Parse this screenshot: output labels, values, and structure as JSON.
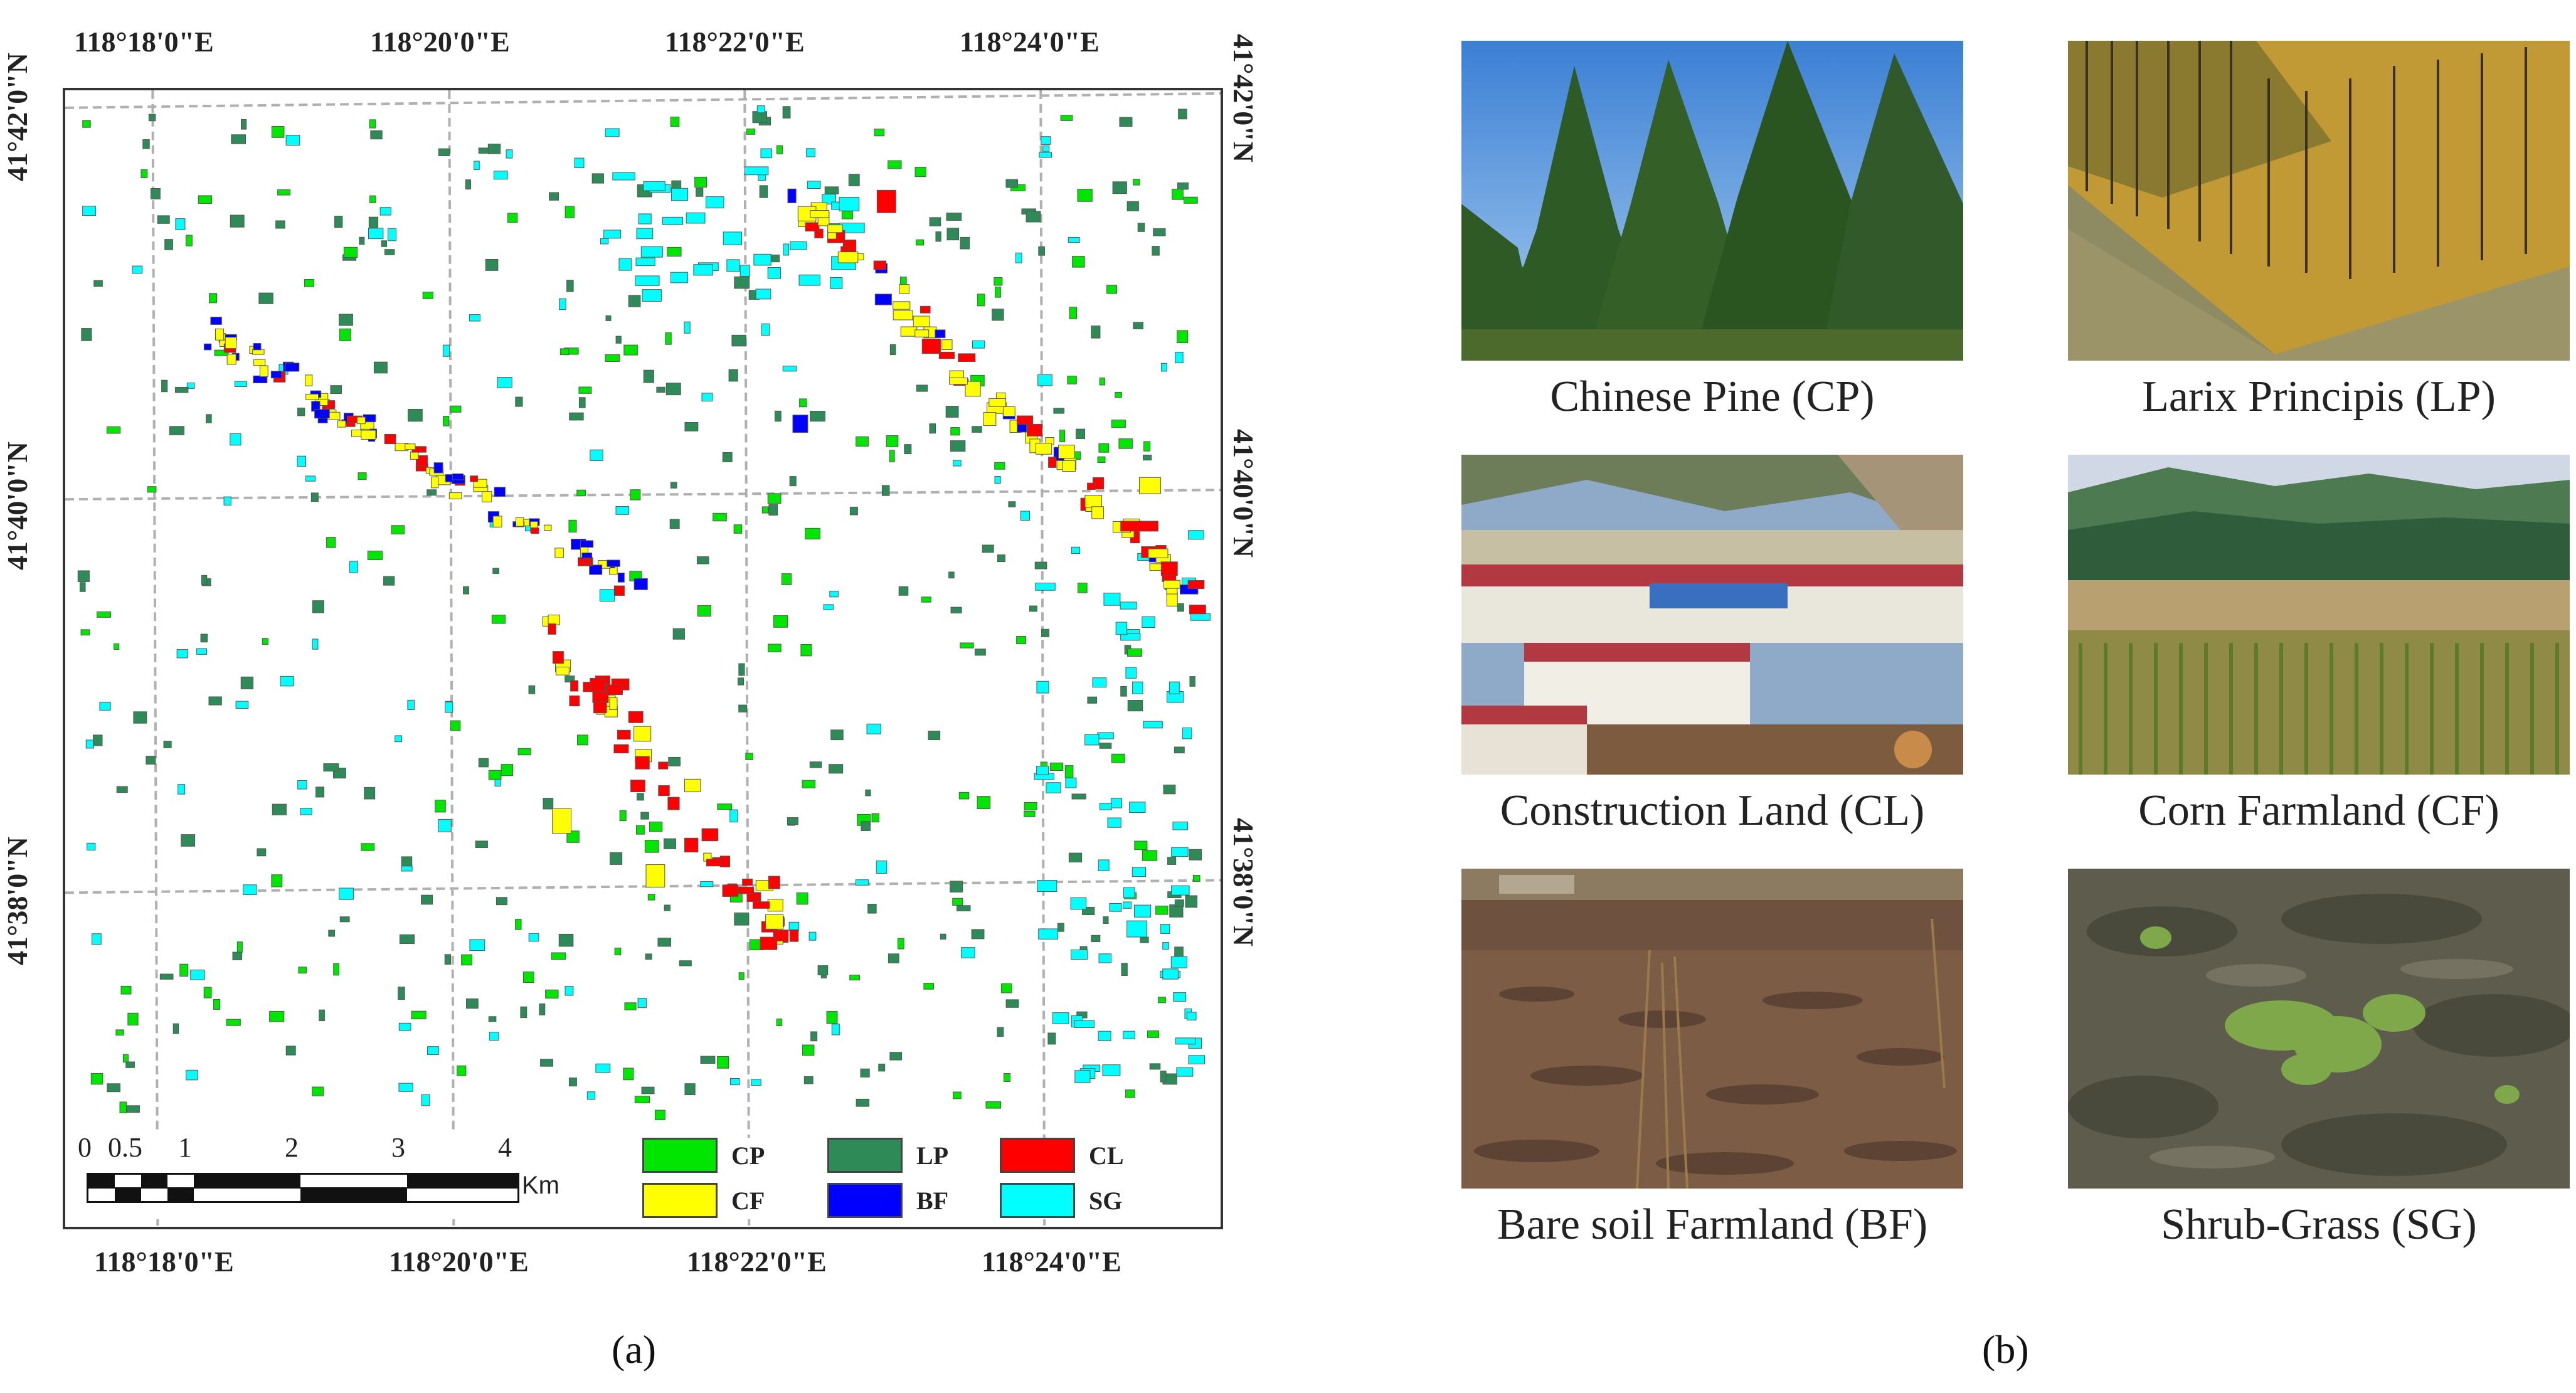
{
  "panel_a": {
    "label": "(a)",
    "top_coords": [
      "118°18'0\"E",
      "118°20'0\"E",
      "118°22'0\"E",
      "118°24'0\"E"
    ],
    "bottom_coords": [
      "118°18'0\"E",
      "118°20'0\"E",
      "118°22'0\"E",
      "118°24'0\"E"
    ],
    "left_coords": [
      "41°42'0\"N",
      "41°40'0\"N",
      "41°38'0\"N"
    ],
    "right_coords": [
      "41°42'0\"N",
      "41°40'0\"N",
      "41°38'0\"N"
    ],
    "scalebar": {
      "ticks": [
        "0",
        "0.5",
        "1",
        "2",
        "3",
        "4"
      ],
      "unit": "Km"
    },
    "legend": [
      {
        "code": "CP",
        "color": "#00e600"
      },
      {
        "code": "LP",
        "color": "#2e8b57"
      },
      {
        "code": "CL",
        "color": "#ff0000"
      },
      {
        "code": "CF",
        "color": "#ffff00"
      },
      {
        "code": "BF",
        "color": "#0000ff"
      },
      {
        "code": "SG",
        "color": "#00ffff"
      }
    ]
  },
  "panel_b": {
    "label": "(b)",
    "photos": [
      {
        "caption": "Chinese Pine (CP)",
        "scene": "pine-forest"
      },
      {
        "caption": "Larix Principis (LP)",
        "scene": "larch-forest"
      },
      {
        "caption": "Construction Land (CL)",
        "scene": "buildings"
      },
      {
        "caption": "Corn Farmland (CF)",
        "scene": "corn-field"
      },
      {
        "caption": "Bare soil Farmland (BF)",
        "scene": "bare-soil"
      },
      {
        "caption": "Shrub-Grass (SG)",
        "scene": "shrub-grass"
      }
    ]
  }
}
